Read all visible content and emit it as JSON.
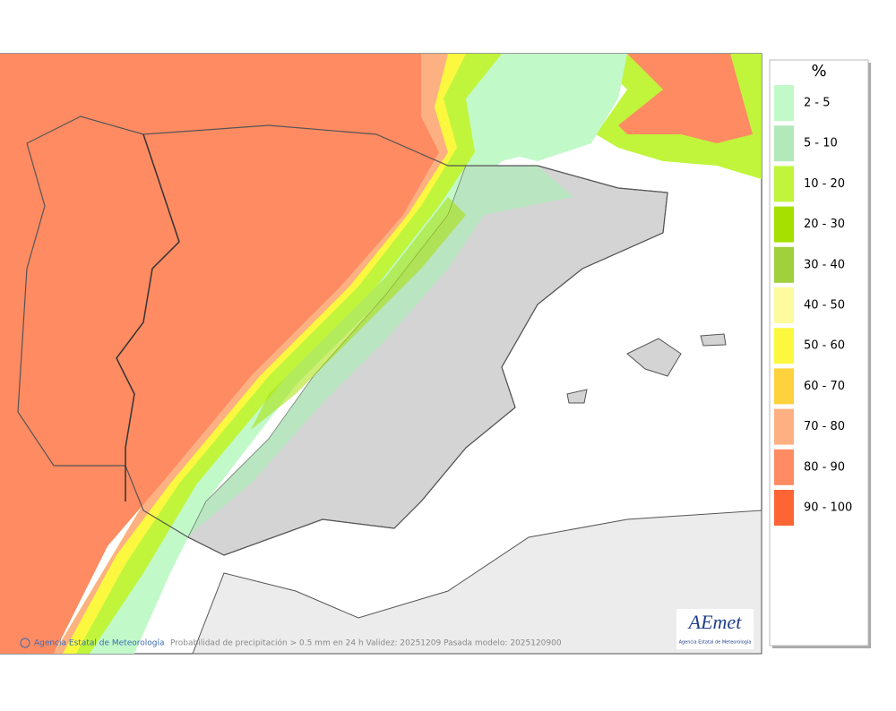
{
  "legend": {
    "title": "%",
    "items": [
      {
        "label": "2 - 5",
        "color": "#c2f9c9"
      },
      {
        "label": "5 - 10",
        "color": "#b3e8bb"
      },
      {
        "label": "10 - 20",
        "color": "#c0f53c"
      },
      {
        "label": "20 - 30",
        "color": "#a6e000"
      },
      {
        "label": "30 - 40",
        "color": "#a0d03c"
      },
      {
        "label": "40 - 50",
        "color": "#fefa9e"
      },
      {
        "label": "50 - 60",
        "color": "#fbf83f"
      },
      {
        "label": "60 - 70",
        "color": "#fed23c"
      },
      {
        "label": "70 - 80",
        "color": "#fdb182"
      },
      {
        "label": "80 - 90",
        "color": "#fe8b62"
      },
      {
        "label": "90 - 100",
        "color": "#fe6535"
      }
    ]
  },
  "footer": {
    "credit": "Agencia Estatal de Meteorología",
    "caption": "Probabilidad de precipitación > 0.5 mm en 24 h Validez: 20251209 Pasada modelo: 2025120900"
  },
  "logo": {
    "name": "AEmet",
    "subtitle": "Agencia Estatal de Meteorología"
  }
}
